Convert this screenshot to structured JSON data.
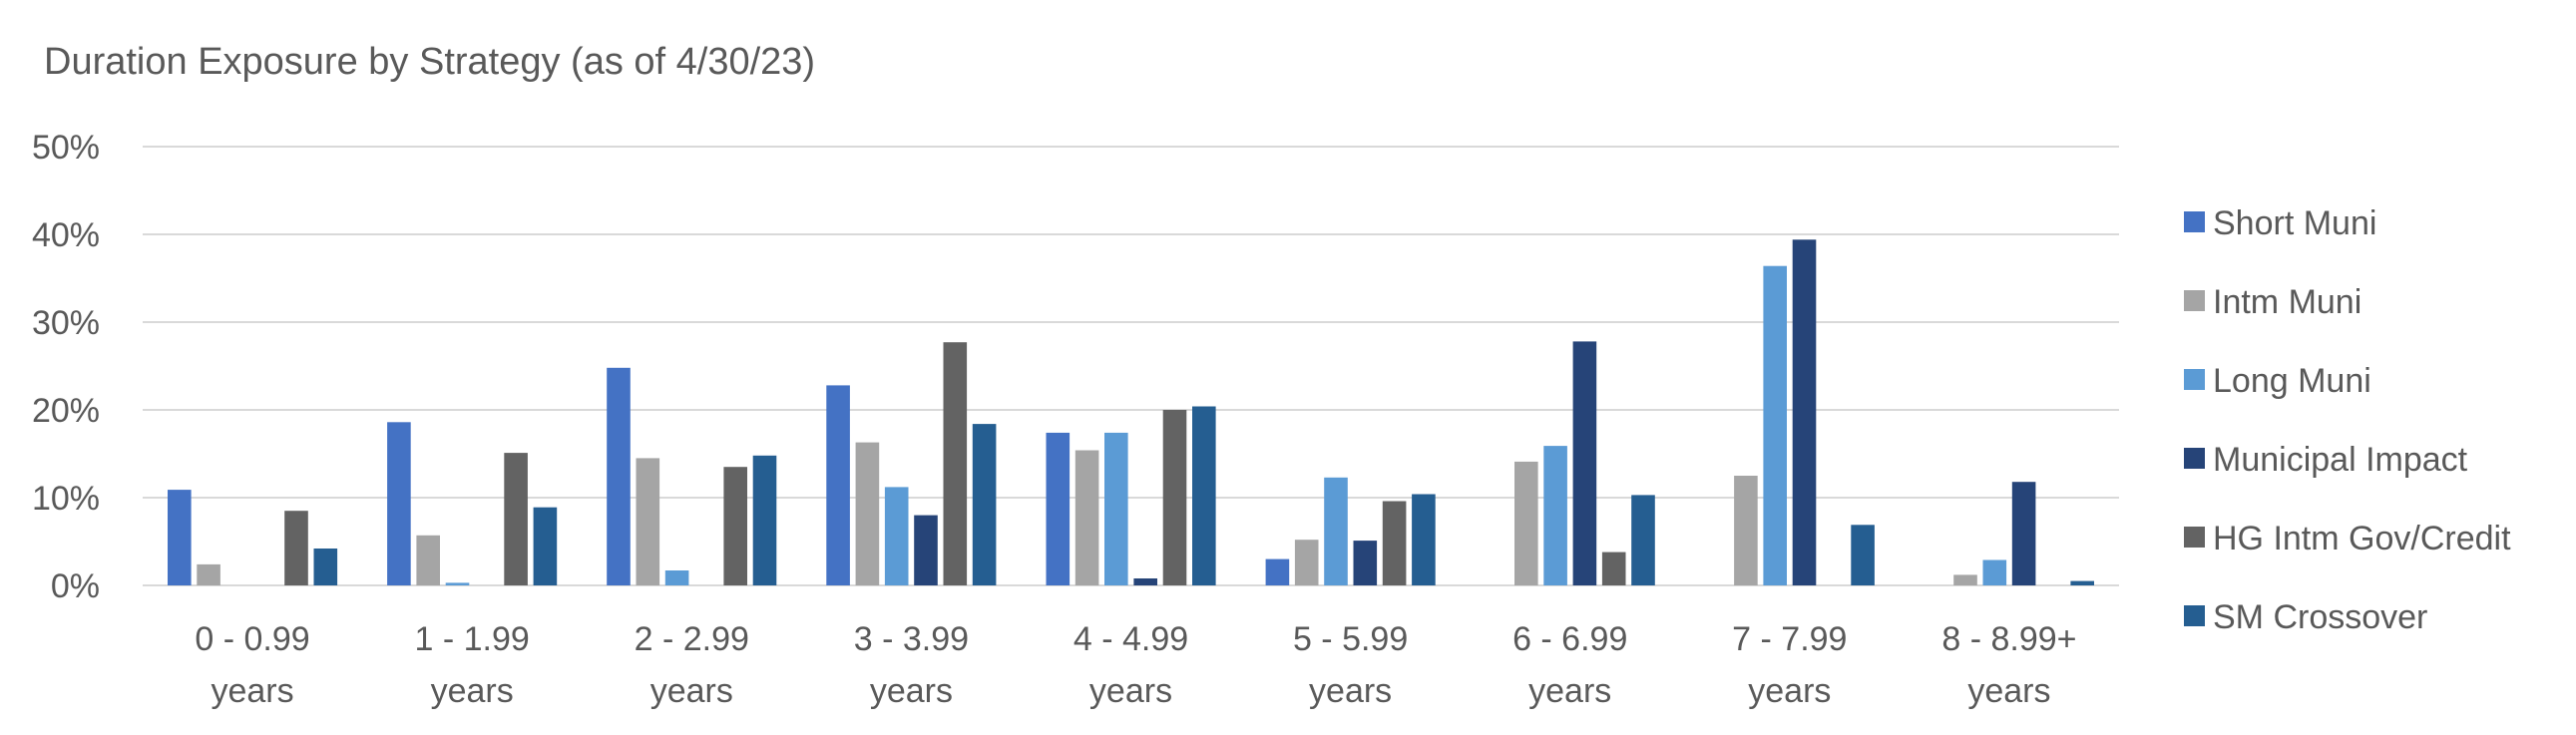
{
  "chart_data": {
    "type": "bar",
    "title": "Duration Exposure by Strategy (as of 4/30/23)",
    "xlabel": "",
    "ylabel": "",
    "ylim": [
      0,
      50
    ],
    "yticks": [
      "0%",
      "10%",
      "20%",
      "30%",
      "40%",
      "50%"
    ],
    "grid": true,
    "legend_position": "right",
    "categories": [
      [
        "0 - 0.99",
        "years"
      ],
      [
        "1 - 1.99",
        "years"
      ],
      [
        "2 - 2.99",
        "years"
      ],
      [
        "3 - 3.99",
        "years"
      ],
      [
        "4 - 4.99",
        "years"
      ],
      [
        "5 - 5.99",
        "years"
      ],
      [
        "6 - 6.99",
        "years"
      ],
      [
        "7 - 7.99",
        "years"
      ],
      [
        "8 - 8.99+",
        "years"
      ]
    ],
    "series": [
      {
        "name": "Short Muni",
        "color": "#4472c4",
        "values": [
          10.9,
          18.6,
          24.8,
          22.8,
          17.4,
          3.0,
          0,
          0,
          0
        ]
      },
      {
        "name": "Intm Muni",
        "color": "#a5a5a5",
        "values": [
          2.4,
          5.7,
          14.5,
          16.3,
          15.4,
          5.2,
          14.1,
          12.5,
          1.2
        ]
      },
      {
        "name": "Long Muni",
        "color": "#5b9bd5",
        "values": [
          0,
          0.3,
          1.7,
          11.2,
          17.4,
          12.3,
          15.9,
          36.4,
          2.9
        ]
      },
      {
        "name": "Municipal Impact",
        "color": "#264478",
        "values": [
          0,
          0,
          0,
          8.0,
          0.8,
          5.1,
          27.8,
          39.4,
          11.8
        ]
      },
      {
        "name": "HG Intm Gov/Credit",
        "color": "#636363",
        "values": [
          8.5,
          15.1,
          13.5,
          27.7,
          20.0,
          9.6,
          3.8,
          0,
          0
        ]
      },
      {
        "name": "SM Crossover",
        "color": "#255e91",
        "values": [
          4.2,
          8.9,
          14.8,
          18.4,
          20.4,
          10.4,
          10.3,
          6.9,
          0.5
        ]
      }
    ]
  }
}
